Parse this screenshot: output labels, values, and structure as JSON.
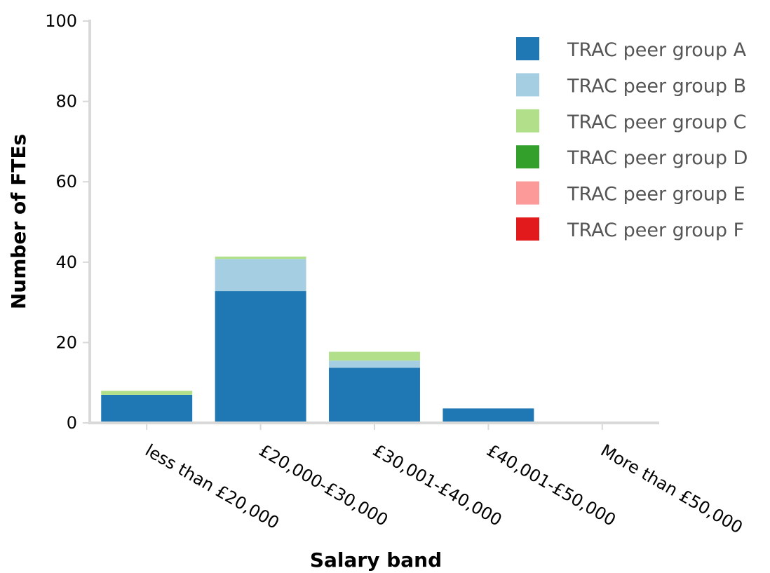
{
  "chart_data": {
    "type": "bar",
    "stacked": true,
    "title": "",
    "xlabel": "Salary band",
    "ylabel": "Number of FTEs",
    "ylim": [
      0,
      100
    ],
    "yticks": [
      0,
      20,
      40,
      60,
      80,
      100
    ],
    "grid": false,
    "legend_position": "top-right",
    "categories": [
      "less than £20,000",
      "£20,000-£30,000",
      "£30,001-£40,000",
      "£40,001-£50,000",
      "More than £50,000"
    ],
    "series": [
      {
        "name": "TRAC peer group A",
        "color": "#1f77b4",
        "values": [
          7.0,
          32.8,
          13.7,
          3.6,
          0
        ]
      },
      {
        "name": "TRAC peer group B",
        "color": "#a6cee3",
        "values": [
          0,
          8.0,
          1.8,
          0,
          0
        ]
      },
      {
        "name": "TRAC peer group C",
        "color": "#b2df8a",
        "values": [
          1.0,
          0.6,
          2.2,
          0,
          0
        ]
      },
      {
        "name": "TRAC peer group D",
        "color": "#33a02c",
        "values": [
          0,
          0,
          0,
          0,
          0
        ]
      },
      {
        "name": "TRAC peer group E",
        "color": "#fb9a99",
        "values": [
          0,
          0,
          0,
          0,
          0
        ]
      },
      {
        "name": "TRAC peer group F",
        "color": "#e31a1c",
        "values": [
          0,
          0,
          0,
          0,
          0
        ]
      }
    ]
  }
}
